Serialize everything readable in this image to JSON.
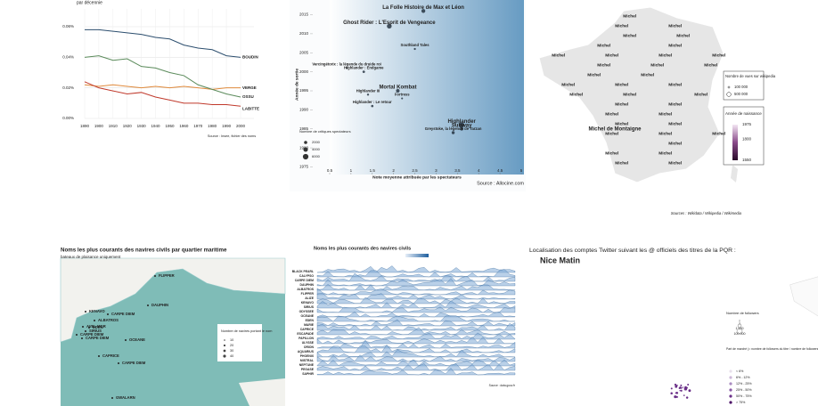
{
  "lines": {
    "type": "line",
    "subtitle": "par décennie",
    "x": [
      1890,
      1900,
      1910,
      1920,
      1930,
      1940,
      1950,
      1960,
      1970,
      1980,
      1990,
      2000
    ],
    "xlim": [
      1890,
      2000
    ],
    "xticks": [
      1890,
      1900,
      1910,
      1920,
      1930,
      1940,
      1950,
      1960,
      1970,
      1980,
      1990,
      2000
    ],
    "ylim": [
      0,
      0.06
    ],
    "yticks": [
      {
        "value": 0,
        "label": "0.00%"
      },
      {
        "value": 0.02,
        "label": "0.02%"
      },
      {
        "value": 0.04,
        "label": "0.04%"
      },
      {
        "value": 0.06,
        "label": "0.06%"
      }
    ],
    "series": [
      {
        "name": "BOUDIN",
        "color": "#2c4e6e",
        "values": [
          0.058,
          0.058,
          0.057,
          0.056,
          0.055,
          0.053,
          0.052,
          0.048,
          0.046,
          0.045,
          0.041,
          0.04
        ]
      },
      {
        "name": "VERGE",
        "color": "#e08a3c",
        "values": [
          0.022,
          0.021,
          0.022,
          0.021,
          0.02,
          0.021,
          0.02,
          0.021,
          0.02,
          0.019,
          0.02,
          0.02
        ]
      },
      {
        "name": "OSSU",
        "color": "#5a8a5a",
        "values": [
          0.04,
          0.041,
          0.038,
          0.039,
          0.034,
          0.033,
          0.03,
          0.028,
          0.022,
          0.019,
          0.016,
          0.014
        ]
      },
      {
        "name": "LABITTE",
        "color": "#c0392b",
        "values": [
          0.024,
          0.02,
          0.018,
          0.016,
          0.017,
          0.014,
          0.012,
          0.01,
          0.01,
          0.009,
          0.009,
          0.008
        ]
      }
    ],
    "source": "Source : Insee, fichier des noms"
  },
  "films": {
    "type": "scatter",
    "y_label": "Année de sortie",
    "x_label": "Note moyenne attribuée par les spectateurs",
    "source": "Source : Allocine.com",
    "xlim": [
      0.5,
      5
    ],
    "xticks": [
      0.5,
      1,
      1.5,
      2,
      2.5,
      3,
      3.5,
      4,
      4.5,
      5
    ],
    "ylim": [
      1973,
      2017
    ],
    "yticks": [
      1975,
      1980,
      1985,
      1990,
      1995,
      2000,
      2005,
      2010,
      2015
    ],
    "size_legend_title": "Nombre de critiques spectateurs",
    "size_legend": [
      2000,
      4000,
      6000
    ],
    "names": [
      "La Folle Histoire de Max et Léon",
      "Ghost Rider : L'Esprit de Vengeance",
      "Southland Tales",
      "Vercingétorix : la légende du druide roi",
      "Highlander : Endgame",
      "Highlander III",
      "Mortal Kombat",
      "Fortress",
      "Highlander : Le retour",
      "Highlander",
      "Subway",
      "Greystoke, la légende de Tarzan"
    ],
    "x": [
      2.7,
      1.9,
      2.5,
      0.9,
      1.3,
      1.4,
      2.1,
      2.2,
      1.5,
      3.6,
      3.6,
      3.4
    ],
    "y": [
      2016,
      2012,
      2006,
      2001,
      2000,
      1994,
      1995,
      1993,
      1991,
      1986,
      1985,
      1984
    ],
    "reviews": [
      3000,
      4500,
      800,
      600,
      1200,
      900,
      2500,
      700,
      1100,
      5500,
      2200,
      1800
    ]
  },
  "michel": {
    "labels": [
      "Michel",
      "Michel",
      "Michel",
      "Michel",
      "Michel",
      "Michel",
      "Michel",
      "Michel",
      "Michel",
      "Michel",
      "Michel",
      "Michel",
      "Michel",
      "Michel",
      "Michel",
      "Michel",
      "Michel",
      "Michel",
      "Michel",
      "Michel",
      "Michel",
      "Michel",
      "Michel",
      "Michel",
      "Michel",
      "Michel",
      "Michel",
      "Michel",
      "Michel",
      "Michel",
      "Michel",
      "Michel",
      "Michel",
      "Michel",
      "Michel",
      "Michel"
    ],
    "featured": "Michel de Montaigne",
    "views_title": "Nombre de vues sur wikipedia",
    "views": [
      {
        "value": 100000,
        "label": "100 000"
      },
      {
        "value": 500000,
        "label": "500 000"
      }
    ],
    "birth_title": "Année de naissance",
    "birth_lim": [
      1550,
      1975
    ],
    "birth_ticks": [
      1975,
      1800,
      1550
    ],
    "source": "Sources : Wikidata / Wikipedia / Wikimedia"
  },
  "ships_map": {
    "title": "Noms les plus courants des navires civils par quartier maritime",
    "subtitle": "bateaux de plaisance uniquement",
    "labels": [
      "FLIPPER",
      "DAUPHIN",
      "CARPE DIEM",
      "ALBATROS",
      "KENAVO",
      "EDEN",
      "SIRIUS",
      "AVEL MOR",
      "CAPRICE",
      "OCEANE",
      "CARPE DIEM",
      "GWALARN",
      "CARPE DIEM",
      "CARPE DIEM"
    ],
    "legend_title": "Nombre de navires portant le nom",
    "legend": [
      10,
      20,
      30,
      40
    ]
  },
  "ships_ridge": {
    "title": "Noms les plus courants des navires civils",
    "names": [
      "BLACK PEARL",
      "CALYPSO",
      "CARPE DIEM",
      "DAUPHIN",
      "ALBATROS",
      "FLIPPER",
      "ALIZE",
      "KENAVO",
      "SIRIUS",
      "ODYSSEE",
      "OCEANE",
      "EDEN",
      "MARIE",
      "CAPRICE",
      "ESCAPADE",
      "PAPILLON",
      "ULYSSE",
      "ORION",
      "AQUARIUS",
      "PHOENIX",
      "MISTRAL",
      "NEPTUNE",
      "PEGASE",
      "SAPHIR"
    ],
    "source": "Source : data.gouv.fr"
  },
  "twitter": {
    "title": "Localisation des comptes Twitter suivant les @ officiels des titres de la PQR :",
    "paper": "Nice Matin",
    "size_title": "Nombre de followers",
    "sizes": [
      1,
      {
        "value": 1000,
        "label": "1 000"
      },
      {
        "value": 100000,
        "label": "100 000"
      }
    ],
    "share_title": "Part de marché (= nombre de followers du titre / nombre de followers de tous les titres de PQR)",
    "shares": [
      "< 6%",
      "6% - 12%",
      "12% - 25%",
      "25% - 50%",
      "50% - 75%",
      "> 75%"
    ],
    "share_colors": [
      "#e8e0ec",
      "#cdb8d8",
      "#a98bc0",
      "#8a5aa6",
      "#6a2f88",
      "#4b0f66"
    ]
  }
}
